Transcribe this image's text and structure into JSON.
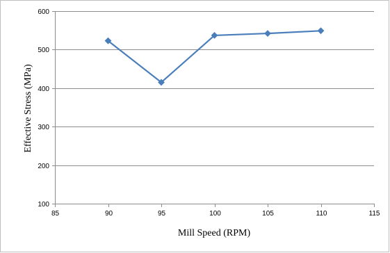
{
  "chart_data": {
    "type": "line",
    "title": "",
    "xlabel": "Mill Speed (RPM)",
    "ylabel": "Effective Stress (MPa)",
    "xlim": [
      85,
      115
    ],
    "ylim": [
      100,
      600
    ],
    "x_ticks": [
      "85",
      "90",
      "95",
      "100",
      "105",
      "110",
      "115"
    ],
    "y_ticks": [
      "100",
      "200",
      "300",
      "400",
      "500",
      "600"
    ],
    "grid": true,
    "legend": "none",
    "series": [
      {
        "color": "#4a7ebb",
        "marker": "diamond",
        "points": [
          {
            "x": 90,
            "y": 523
          },
          {
            "x": 95,
            "y": 415
          },
          {
            "x": 100,
            "y": 537
          },
          {
            "x": 105,
            "y": 542
          },
          {
            "x": 110,
            "y": 549
          }
        ]
      }
    ]
  }
}
